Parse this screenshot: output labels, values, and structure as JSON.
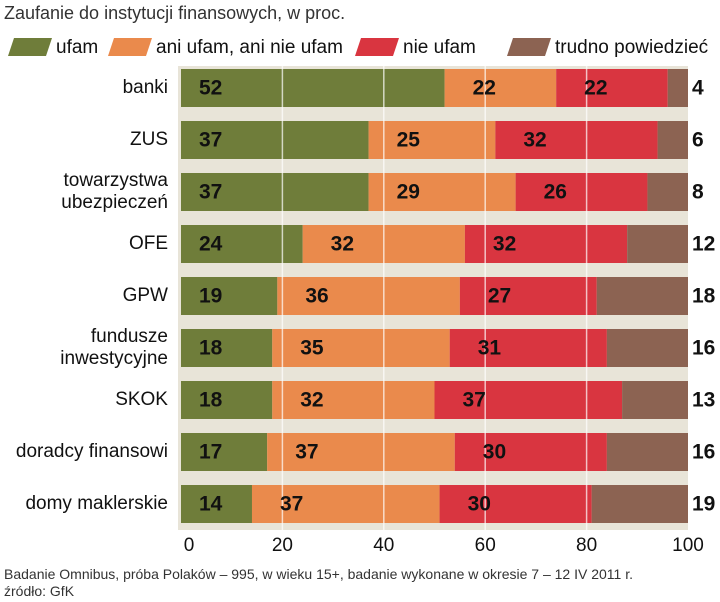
{
  "chart_data": {
    "type": "stacked-bar-horizontal",
    "title": "Zaufanie do instytucji finansowych, w proc.",
    "categories": [
      "banki",
      "ZUS",
      "towarzystwa\nubezpieczeń",
      "OFE",
      "GPW",
      "fundusze\ninwestycyjne",
      "SKOK",
      "doradcy finansowi",
      "domy maklerskie"
    ],
    "series": [
      {
        "name": "ufam",
        "color": "#6f7d3a",
        "values": [
          52,
          37,
          37,
          24,
          19,
          18,
          18,
          17,
          14
        ]
      },
      {
        "name": "ani ufam, ani nie ufam",
        "color": "#ea8a4c",
        "values": [
          22,
          25,
          29,
          32,
          36,
          35,
          32,
          37,
          37
        ]
      },
      {
        "name": "nie ufam",
        "color": "#d93540",
        "values": [
          22,
          32,
          26,
          32,
          27,
          31,
          37,
          30,
          30
        ]
      },
      {
        "name": "trudno powiedzieć",
        "color": "#8c6352",
        "values": [
          4,
          6,
          8,
          12,
          18,
          16,
          13,
          16,
          19
        ]
      }
    ],
    "xlim": [
      0,
      100
    ],
    "xticks": [
      0,
      20,
      40,
      60,
      80,
      100
    ],
    "grid": true,
    "notes": [
      "Badanie Omnibus, próba Polaków – 995, w wieku 15+, badanie wykonane w okresie 7 – 12 IV 2011 r.",
      "źródło: GfK"
    ]
  }
}
